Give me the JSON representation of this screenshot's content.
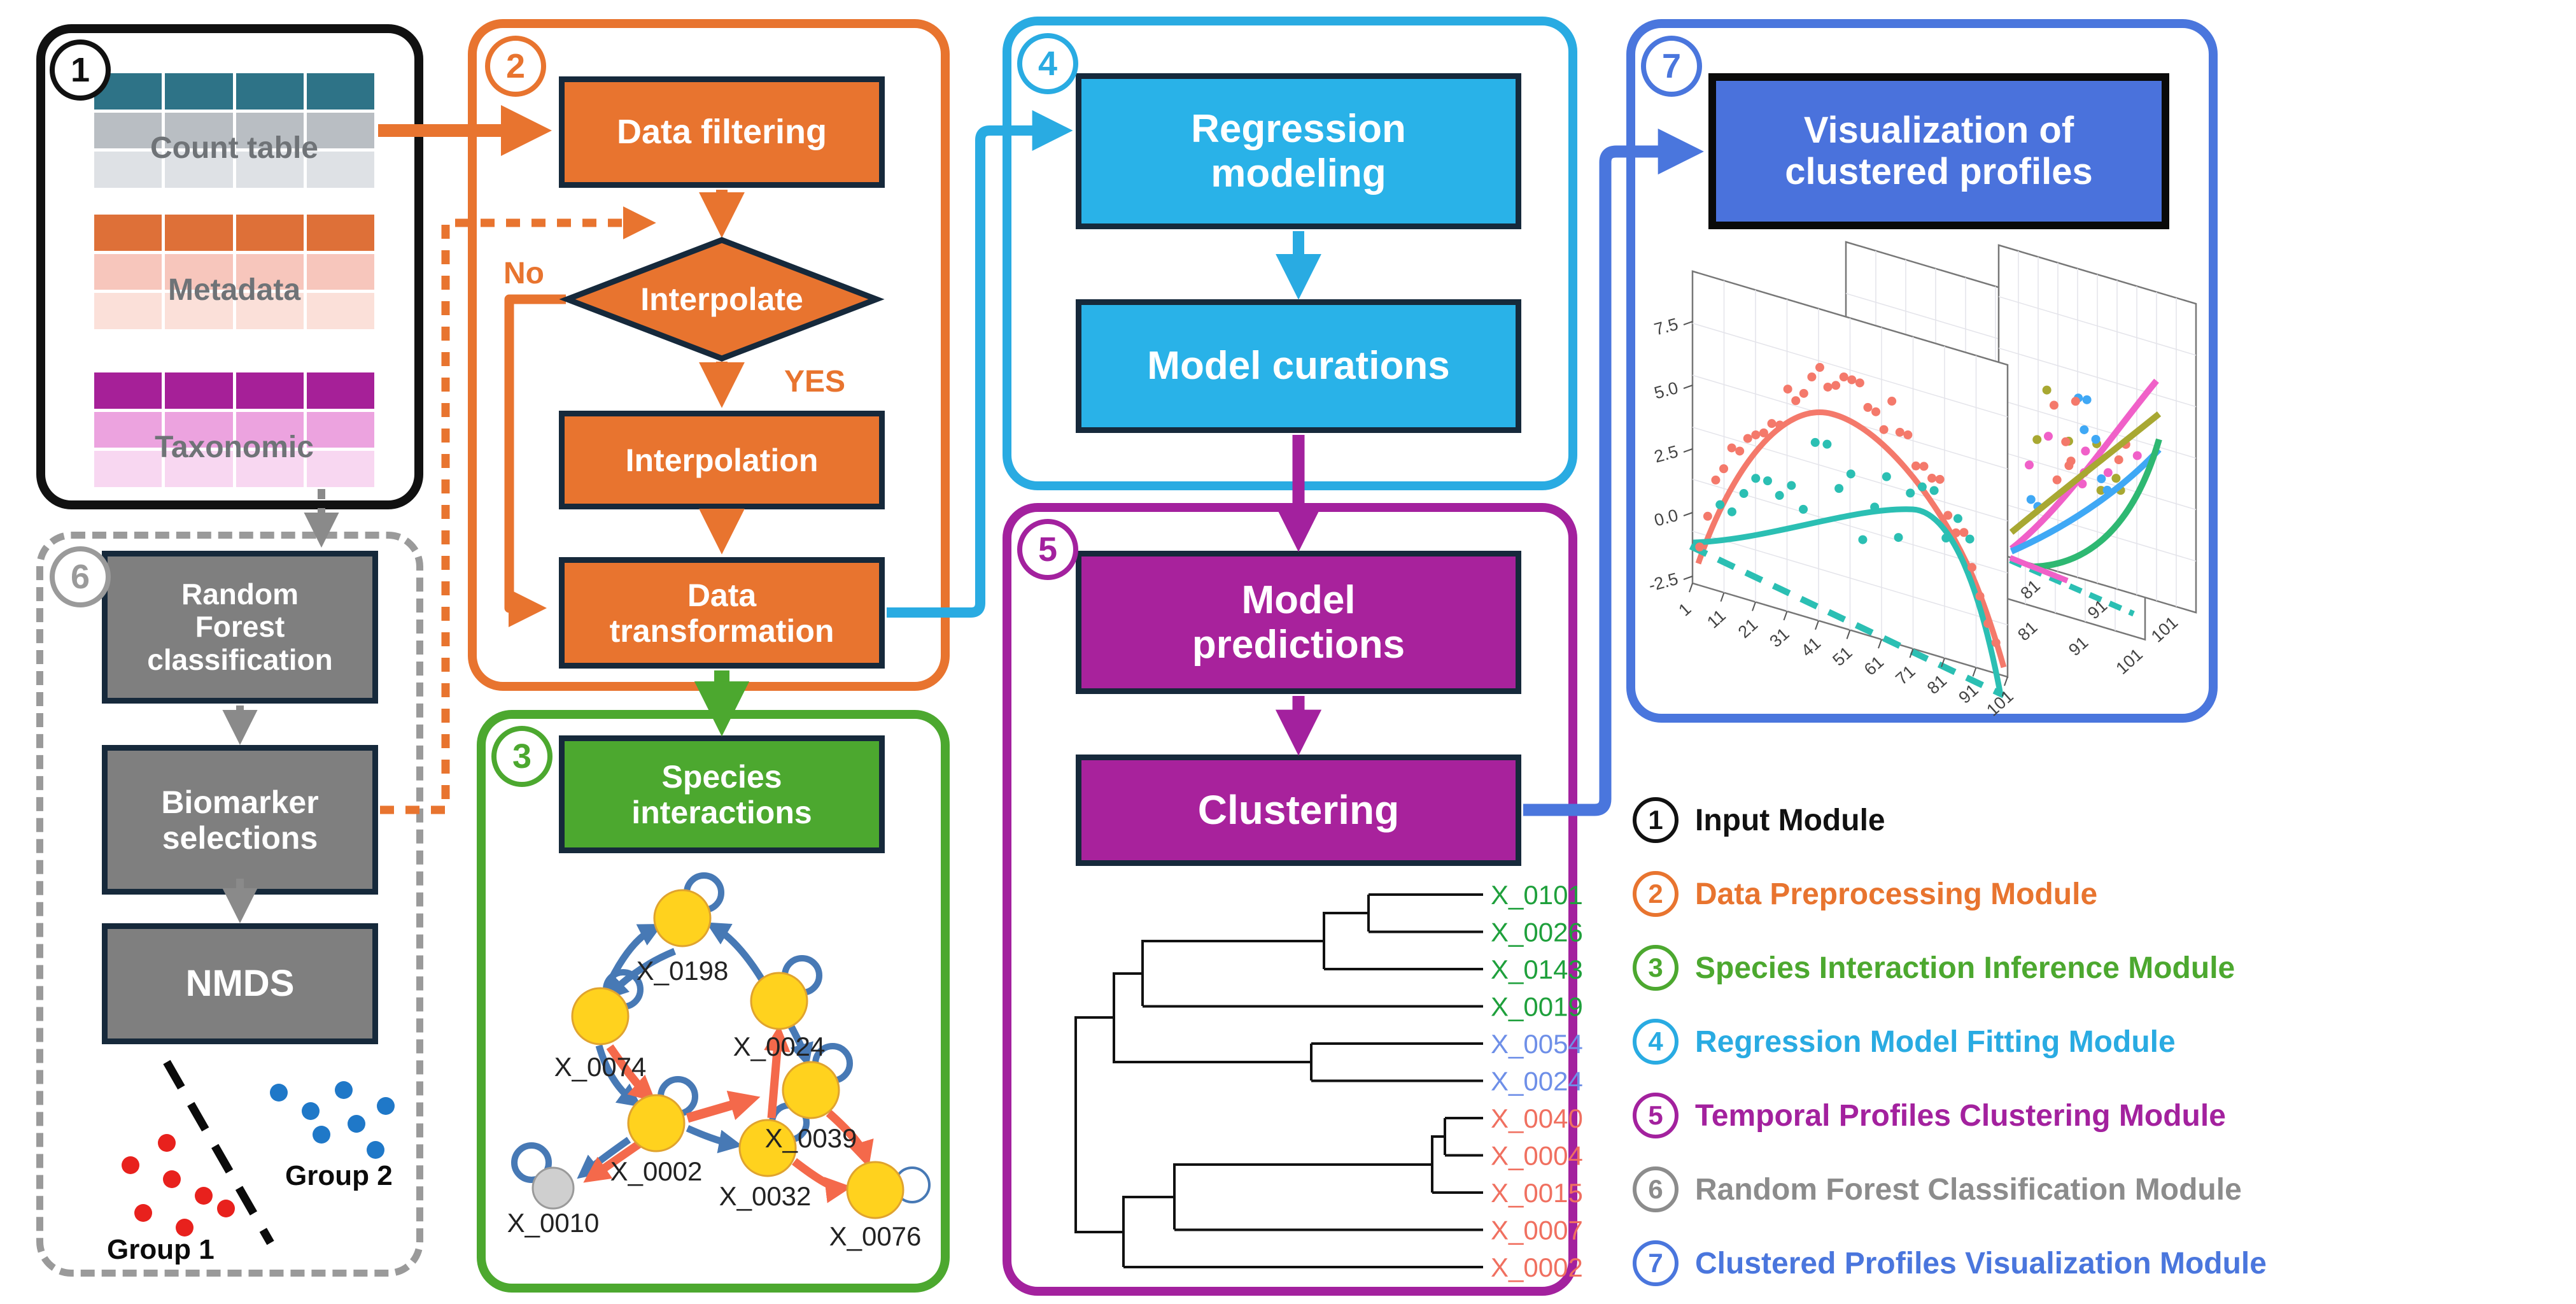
{
  "figure": {
    "name": "Analysis pipeline diagram"
  },
  "modules": {
    "input": {
      "number": "1",
      "tables": [
        {
          "label": "Count table",
          "colors": [
            "#2E7387",
            "#B9BEC3",
            "#DEE1E5"
          ]
        },
        {
          "label": "Metadata",
          "colors": [
            "#DE7038",
            "#F7C6BC",
            "#FBE0D9"
          ]
        },
        {
          "label": "Taxonomic",
          "colors": [
            "#A62098",
            "#ECA3DF",
            "#F8D7F1"
          ]
        }
      ]
    },
    "preprocessing": {
      "number": "2",
      "filtering": "Data filtering",
      "decision": "Interpolate",
      "no_label": "No",
      "yes_label": "YES",
      "interpolation": "Interpolation",
      "transformation": "Data transformation"
    },
    "species": {
      "number": "3",
      "box": "Species interactions",
      "nodes": [
        {
          "id": "X_0198"
        },
        {
          "id": "X_0074"
        },
        {
          "id": "X_0024"
        },
        {
          "id": "X_0039"
        },
        {
          "id": "X_0002"
        },
        {
          "id": "X_0032"
        },
        {
          "id": "X_0076"
        },
        {
          "id": "X_0010"
        }
      ]
    },
    "regression": {
      "number": "4",
      "modeling": "Regression modeling",
      "curations": "Model curations"
    },
    "clustering": {
      "number": "5",
      "predictions": "Model predictions",
      "clustering": "Clustering",
      "leaves": [
        {
          "id": "X_0101",
          "color": "#1FA03C"
        },
        {
          "id": "X_0026",
          "color": "#1FA03C"
        },
        {
          "id": "X_0143",
          "color": "#1FA03C"
        },
        {
          "id": "X_0019",
          "color": "#1FA03C"
        },
        {
          "id": "X_0054",
          "color": "#6E8FE8"
        },
        {
          "id": "X_0024",
          "color": "#6E8FE8"
        },
        {
          "id": "X_0040",
          "color": "#F07060"
        },
        {
          "id": "X_0004",
          "color": "#F07060"
        },
        {
          "id": "X_0015",
          "color": "#F07060"
        },
        {
          "id": "X_0007",
          "color": "#F07060"
        },
        {
          "id": "X_0002",
          "color": "#F07060"
        }
      ]
    },
    "forest": {
      "number": "6",
      "rf_lines": [
        "Random",
        "Forest",
        "classification"
      ],
      "biomarker_lines": [
        "Biomarker",
        "selections"
      ],
      "nmds": "NMDS",
      "group1": "Group 1",
      "group2": "Group 2"
    },
    "visualization": {
      "number": "7",
      "box": "Visualization of clustered profiles",
      "y_ticks": [
        "7.5",
        "5.0",
        "2.5",
        "0.0",
        "-2.5"
      ],
      "x_ticks": [
        "1",
        "11",
        "21",
        "31",
        "41",
        "51",
        "61",
        "71",
        "81",
        "91",
        "101"
      ],
      "x_ticks_back": [
        "81",
        "91",
        "101"
      ]
    }
  },
  "legend": {
    "items": [
      {
        "number": "1",
        "label": "Input Module",
        "color": "#111111"
      },
      {
        "number": "2",
        "label": "Data Preprocessing Module",
        "color": "#E8742F"
      },
      {
        "number": "3",
        "label": "Species Interaction Inference Module",
        "color": "#4CA82F"
      },
      {
        "number": "4",
        "label": "Regression Model Fitting Module",
        "color": "#29ABE2"
      },
      {
        "number": "5",
        "label": "Temporal Profiles Clustering Module",
        "color": "#A3219E"
      },
      {
        "number": "6",
        "label": "Random Forest Classification Module",
        "color": "#8C8C8C"
      },
      {
        "number": "7",
        "label": "Clustered Profiles Visualization Module",
        "color": "#4A76DD"
      }
    ]
  },
  "colors": {
    "orange": "#E8742F",
    "green": "#4CA82F",
    "cyan": "#29ABE2",
    "cyan_fill": "#29B2E8",
    "purple": "#A3219E",
    "purple_fill": "#A8229C",
    "blue": "#4A76DD",
    "blue_fill": "#4A72DC",
    "gray": "#9A9A9A",
    "gray_box": "#7F7F7F",
    "dark_border": "#16293B",
    "black": "#111111",
    "node_yellow": "#FFD21E",
    "node_gray": "#CFCFCF",
    "edge_blue": "#4779B5",
    "edge_red": "#F4694B",
    "nmds_red": "#E8211D",
    "nmds_blue": "#1F78C8",
    "plot_salmon": "#F4796B",
    "plot_teal": "#2BBFB3",
    "plot_violet": "#D97CE8",
    "plot_blue": "#3FA8F5",
    "plot_olive": "#A8A832",
    "plot_green": "#2EB872",
    "plot_magenta": "#F060C8"
  }
}
